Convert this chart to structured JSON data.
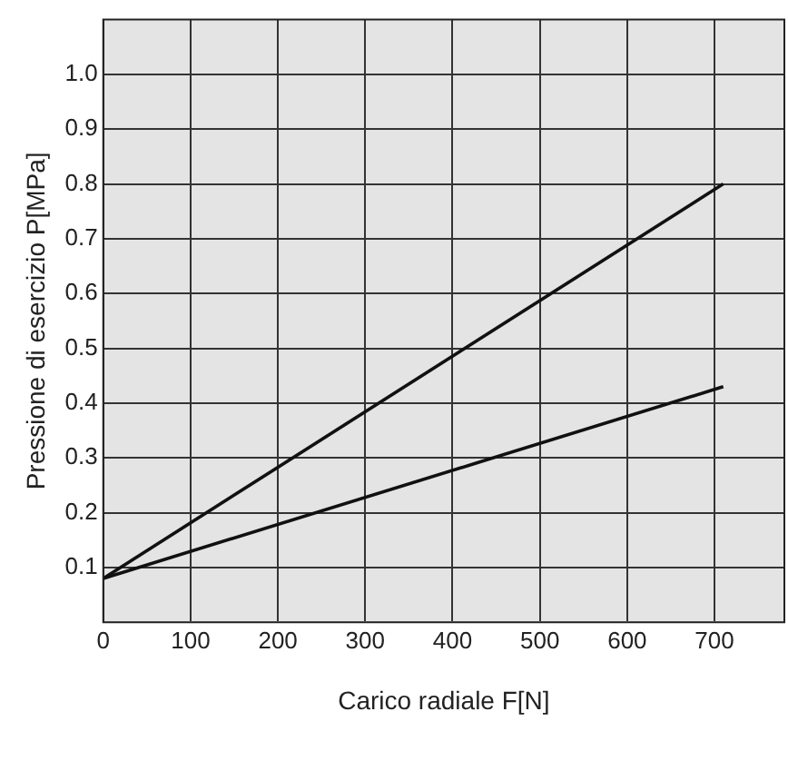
{
  "chart_data": {
    "type": "line",
    "xlabel": "Carico radiale F[N]",
    "ylabel": "Pressione di esercizio P[MPa]",
    "xlim": [
      0,
      780
    ],
    "xticks": [
      0,
      100,
      200,
      300,
      400,
      500,
      600,
      700
    ],
    "ylim": [
      0,
      1.1
    ],
    "yticks": [
      0.1,
      0.2,
      0.3,
      0.4,
      0.5,
      0.6,
      0.7,
      0.8,
      0.9,
      {
        "value": 1,
        "label": "1.0"
      }
    ],
    "x": [
      0,
      710
    ],
    "grid": true,
    "legend": false,
    "marker": "none",
    "line_style": "solid",
    "series": [
      {
        "color": "#111111",
        "values": [
          0.08,
          0.8
        ]
      },
      {
        "color": "#111111",
        "values": [
          0.08,
          0.43
        ]
      }
    ]
  }
}
